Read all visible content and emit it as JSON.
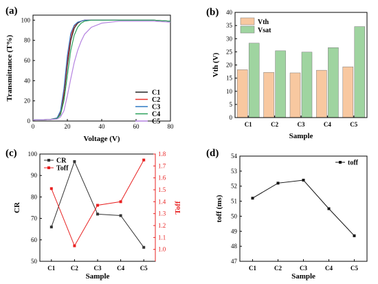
{
  "chart_data": [
    {
      "panel": "(a)",
      "type": "line",
      "xlabel": "Voltage (V)",
      "ylabel": "Transmittance (T%)",
      "xlim": [
        0,
        80
      ],
      "ylim": [
        0,
        105
      ],
      "xticks": [
        0,
        20,
        40,
        60,
        80
      ],
      "yticks": [
        0,
        20,
        40,
        60,
        80,
        100
      ],
      "legend_position": "bottom-right",
      "series": [
        {
          "name": "C1",
          "color": "#222222",
          "x": [
            0,
            10,
            14,
            16,
            18,
            20,
            22,
            24,
            26,
            28,
            30,
            34,
            40,
            50,
            60,
            70,
            80
          ],
          "y": [
            1,
            1.5,
            3,
            8,
            25,
            55,
            80,
            92,
            97,
            99,
            100,
            100,
            100,
            100,
            100,
            100,
            99
          ]
        },
        {
          "name": "C2",
          "color": "#e8312a",
          "x": [
            0,
            10,
            14,
            16,
            18,
            20,
            22,
            24,
            26,
            28,
            30,
            34,
            40,
            50,
            60,
            70,
            80
          ],
          "y": [
            1,
            1.5,
            3,
            9,
            28,
            60,
            84,
            94,
            98,
            99,
            100,
            100,
            100,
            100,
            100,
            100,
            99
          ]
        },
        {
          "name": "C3",
          "color": "#2e78c4",
          "x": [
            0,
            10,
            14,
            16,
            18,
            20,
            22,
            24,
            26,
            28,
            30,
            34,
            40,
            50,
            60,
            70,
            80
          ],
          "y": [
            1,
            1.5,
            3,
            10,
            32,
            65,
            87,
            95,
            98,
            99,
            100,
            100,
            100,
            100,
            100,
            100,
            99
          ]
        },
        {
          "name": "C4",
          "color": "#2aa05a",
          "x": [
            0,
            10,
            14,
            16,
            18,
            20,
            22,
            24,
            26,
            28,
            30,
            34,
            40,
            50,
            60,
            70,
            80
          ],
          "y": [
            1,
            1.5,
            2.5,
            6,
            20,
            45,
            70,
            85,
            93,
            97,
            99,
            100,
            100,
            100,
            100,
            100,
            99
          ]
        },
        {
          "name": "C5",
          "color": "#b482e0",
          "x": [
            0,
            10,
            14,
            16,
            18,
            20,
            22,
            24,
            26,
            28,
            30,
            34,
            40,
            50,
            60,
            70,
            80
          ],
          "y": [
            1,
            1.5,
            2,
            4,
            10,
            25,
            42,
            58,
            70,
            79,
            86,
            93,
            97,
            99,
            99,
            99,
            98
          ]
        }
      ]
    },
    {
      "panel": "(b)",
      "type": "bar",
      "xlabel": "Sample",
      "ylabel": "Vth (V)",
      "categories": [
        "C1",
        "C2",
        "C3",
        "C4",
        "C5"
      ],
      "ylim": [
        0,
        40
      ],
      "yticks": [
        0,
        5,
        10,
        15,
        20,
        25,
        30,
        35,
        40
      ],
      "legend_position": "top-left",
      "series": [
        {
          "name": "Vth",
          "color": "#f8c8a0",
          "values": [
            18.2,
            17.2,
            17.0,
            18.0,
            19.3
          ]
        },
        {
          "name": "Vsat",
          "color": "#9fd4a0",
          "values": [
            28.3,
            25.4,
            24.9,
            26.6,
            34.6
          ]
        }
      ]
    },
    {
      "panel": "(c)",
      "type": "line",
      "xlabel": "Sample",
      "ylabel": "CR",
      "ylabel_right": "Toff",
      "categories": [
        "C1",
        "C2",
        "C3",
        "C4",
        "C5"
      ],
      "ylim": [
        50,
        100
      ],
      "yticks": [
        50,
        60,
        70,
        80,
        90,
        100
      ],
      "ylim_right": [
        0.9,
        1.8
      ],
      "yticks_right": [
        "1.0",
        "1.1",
        "1.2",
        "1.3",
        "1.4",
        "1.5",
        "1.6",
        "1.7",
        "1.8"
      ],
      "legend_position": "top-left",
      "series": [
        {
          "name": "CR",
          "color": "#333333",
          "axis": "left",
          "values": [
            66,
            96.5,
            72,
            71.3,
            56.5
          ]
        },
        {
          "name": "Toff",
          "color": "#e82020",
          "axis": "right",
          "values": [
            1.51,
            1.03,
            1.37,
            1.4,
            1.75
          ]
        }
      ]
    },
    {
      "panel": "(d)",
      "type": "line",
      "xlabel": "Sample",
      "ylabel": "toff (ms)",
      "categories": [
        "C1",
        "C2",
        "C3",
        "C4",
        "C5"
      ],
      "ylim": [
        47,
        54
      ],
      "yticks": [
        47,
        48,
        49,
        50,
        51,
        52,
        53,
        54
      ],
      "legend_position": "top-right",
      "series": [
        {
          "name": "toff",
          "color": "#111111",
          "values": [
            51.2,
            52.2,
            52.4,
            50.5,
            48.7
          ]
        }
      ]
    }
  ]
}
